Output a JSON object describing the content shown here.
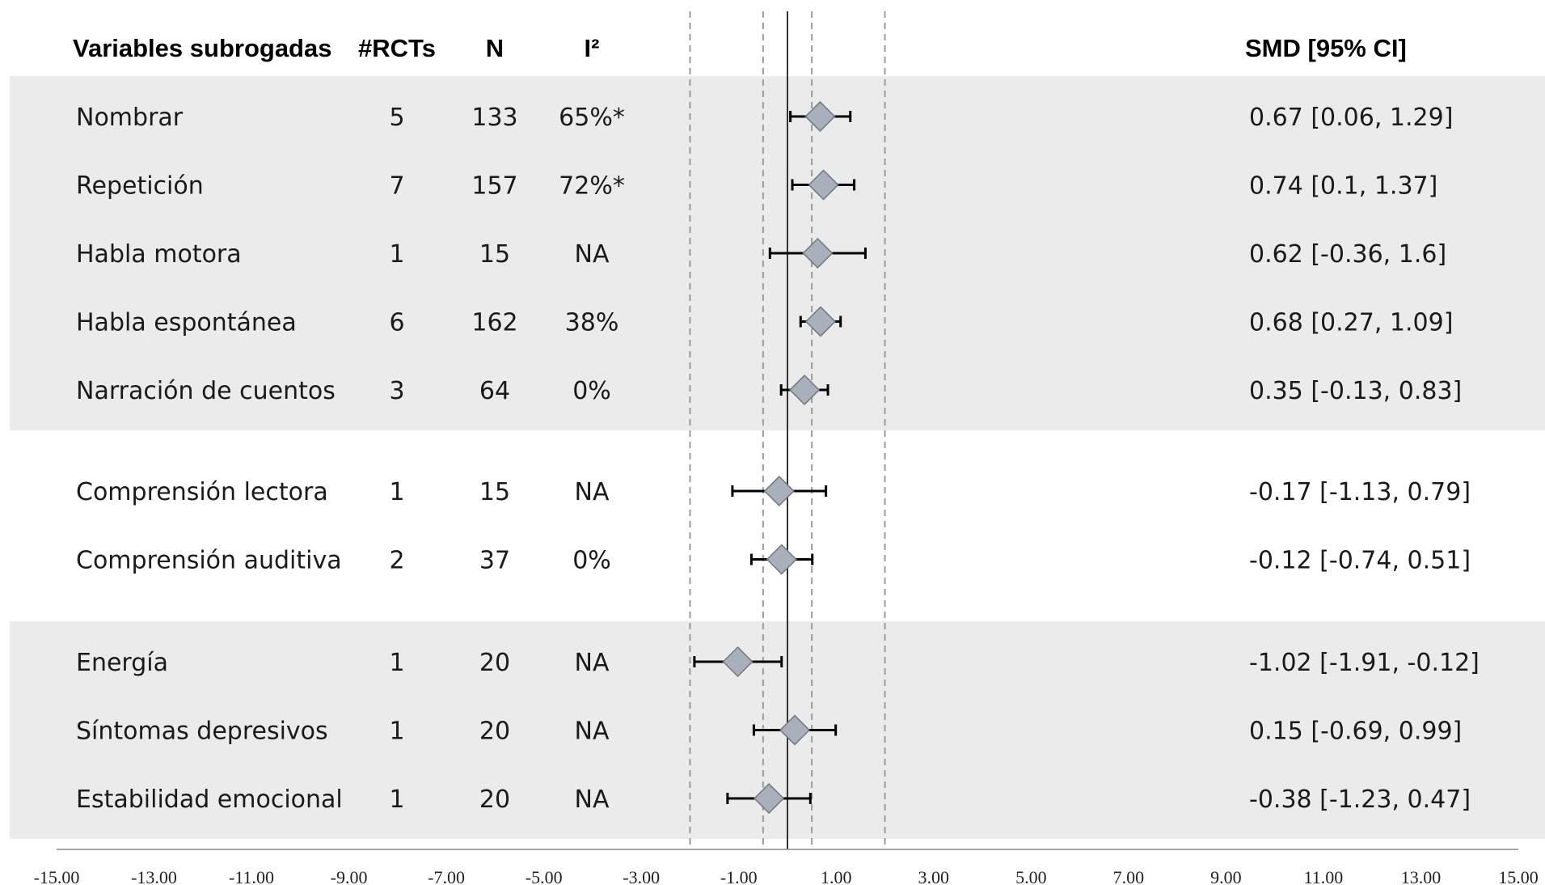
{
  "chart_data": {
    "type": "forest",
    "columns": {
      "variable": "Variables subrogadas",
      "rcts": "#RCTs",
      "n": "N",
      "i2": "I²",
      "smd": "SMD [95% CI]"
    },
    "groups": [
      {
        "shaded": true,
        "rows": [
          {
            "name": "Nombrar",
            "rcts": "5",
            "n": "133",
            "i2": "65%*",
            "smd": 0.67,
            "ci_low": 0.06,
            "ci_high": 1.29,
            "label": "0.67 [0.06, 1.29]"
          },
          {
            "name": "Repetición",
            "rcts": "7",
            "n": "157",
            "i2": "72%*",
            "smd": 0.74,
            "ci_low": 0.1,
            "ci_high": 1.37,
            "label": "0.74 [0.1, 1.37]"
          },
          {
            "name": "Habla motora",
            "rcts": "1",
            "n": "15",
            "i2": "NA",
            "smd": 0.62,
            "ci_low": -0.36,
            "ci_high": 1.6,
            "label": "0.62 [-0.36, 1.6]"
          },
          {
            "name": "Habla espontánea",
            "rcts": "6",
            "n": "162",
            "i2": "38%",
            "smd": 0.68,
            "ci_low": 0.27,
            "ci_high": 1.09,
            "label": "0.68 [0.27, 1.09]"
          },
          {
            "name": "Narración de cuentos",
            "rcts": "3",
            "n": "64",
            "i2": "0%",
            "smd": 0.35,
            "ci_low": -0.13,
            "ci_high": 0.83,
            "label": "0.35 [-0.13, 0.83]"
          }
        ]
      },
      {
        "shaded": false,
        "rows": [
          {
            "name": "Comprensión lectora",
            "rcts": "1",
            "n": "15",
            "i2": "NA",
            "smd": -0.17,
            "ci_low": -1.13,
            "ci_high": 0.79,
            "label": "-0.17 [-1.13, 0.79]"
          },
          {
            "name": "Comprensión auditiva",
            "rcts": "2",
            "n": "37",
            "i2": "0%",
            "smd": -0.12,
            "ci_low": -0.74,
            "ci_high": 0.51,
            "label": "-0.12 [-0.74, 0.51]"
          }
        ]
      },
      {
        "shaded": true,
        "rows": [
          {
            "name": "Energía",
            "rcts": "1",
            "n": "20",
            "i2": "NA",
            "smd": -1.02,
            "ci_low": -1.91,
            "ci_high": -0.12,
            "label": "-1.02 [-1.91, -0.12]"
          },
          {
            "name": "Síntomas depresivos",
            "rcts": "1",
            "n": "20",
            "i2": "NA",
            "smd": 0.15,
            "ci_low": -0.69,
            "ci_high": 0.99,
            "label": "0.15 [-0.69, 0.99]"
          },
          {
            "name": "Estabilidad emocional",
            "rcts": "1",
            "n": "20",
            "i2": "NA",
            "smd": -0.38,
            "ci_low": -1.23,
            "ci_high": 0.47,
            "label": "-0.38 [-1.23, 0.47]"
          }
        ]
      }
    ],
    "x_ticks": [
      -15,
      -13,
      -11,
      -9,
      -7,
      -5,
      -3,
      -1,
      1,
      3,
      5,
      7,
      9,
      11,
      13,
      15
    ],
    "x_tick_labels": [
      "-15.00",
      "-13.00",
      "-11.00",
      "-9.00",
      "-7.00",
      "-5.00",
      "-3.00",
      "-1.00",
      "1.00",
      "3.00",
      "5.00",
      "7.00",
      "9.00",
      "11.00",
      "13.00",
      "15.00"
    ],
    "xlim": [
      -15,
      15
    ],
    "reference_line": 0,
    "dashed_reference_lines": [
      -2,
      -0.5,
      0.5,
      2
    ],
    "colors": {
      "band": "#ebebeb",
      "diamond_fill": "#a9b0bc",
      "diamond_stroke": "#6f7580",
      "error_bar": "#000000",
      "dashed_line": "#9b9b9b",
      "zero_line": "#333333"
    }
  }
}
